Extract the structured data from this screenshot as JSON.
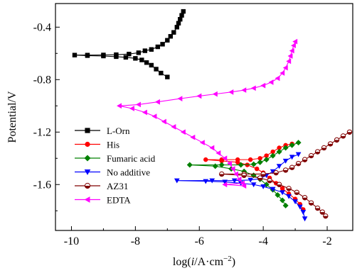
{
  "chart_data": {
    "type": "line",
    "title": "",
    "xlabel": {
      "pre": "log(",
      "italic": "i",
      "mid": "/A·cm",
      "sup": "−2",
      "post": ")"
    },
    "ylabel": "Potential/V",
    "xlim": [
      -10.5,
      -1.2
    ],
    "ylim": [
      -1.95,
      -0.22
    ],
    "xticks": [
      -10,
      -8,
      -6,
      -4,
      -2
    ],
    "xtick_labels": [
      "-10",
      "-8",
      "-6",
      "-4",
      "-2"
    ],
    "yticks": [
      -0.4,
      -0.8,
      -1.2,
      -1.6
    ],
    "ytick_labels": [
      "-0.4",
      "-0.8",
      "-1.2",
      "-1.6"
    ],
    "grid": false,
    "legend_position": "middle-left",
    "series": [
      {
        "name": "L-Orn",
        "color": "#000000",
        "marker": "square",
        "fill": "filled",
        "points": [
          [
            -6.5,
            -0.28
          ],
          [
            -6.55,
            -0.31
          ],
          [
            -6.6,
            -0.34
          ],
          [
            -6.65,
            -0.37
          ],
          [
            -6.7,
            -0.4
          ],
          [
            -6.8,
            -0.44
          ],
          [
            -6.9,
            -0.47
          ],
          [
            -7.0,
            -0.5
          ],
          [
            -7.15,
            -0.53
          ],
          [
            -7.3,
            -0.55
          ],
          [
            -7.5,
            -0.57
          ],
          [
            -7.7,
            -0.58
          ],
          [
            -7.9,
            -0.595
          ],
          [
            -8.2,
            -0.605
          ],
          [
            -8.6,
            -0.61
          ],
          [
            -9.0,
            -0.612
          ],
          [
            -9.5,
            -0.613
          ],
          [
            -9.9,
            -0.613
          ],
          [
            -9.5,
            -0.617
          ],
          [
            -9.0,
            -0.62
          ],
          [
            -8.6,
            -0.625
          ],
          [
            -8.3,
            -0.63
          ],
          [
            -8.0,
            -0.638
          ],
          [
            -7.8,
            -0.65
          ],
          [
            -7.65,
            -0.67
          ],
          [
            -7.5,
            -0.69
          ],
          [
            -7.35,
            -0.72
          ],
          [
            -7.2,
            -0.75
          ],
          [
            -7.0,
            -0.78
          ]
        ]
      },
      {
        "name": "His",
        "color": "#ff0000",
        "marker": "circle",
        "fill": "filled",
        "points": [
          [
            -3.1,
            -1.29
          ],
          [
            -3.3,
            -1.3
          ],
          [
            -3.5,
            -1.32
          ],
          [
            -3.7,
            -1.35
          ],
          [
            -3.9,
            -1.38
          ],
          [
            -4.1,
            -1.4
          ],
          [
            -4.4,
            -1.41
          ],
          [
            -4.8,
            -1.41
          ],
          [
            -5.3,
            -1.41
          ],
          [
            -5.8,
            -1.41
          ],
          [
            -5.3,
            -1.42
          ],
          [
            -4.8,
            -1.43
          ],
          [
            -4.5,
            -1.45
          ],
          [
            -4.2,
            -1.48
          ],
          [
            -4.0,
            -1.51
          ],
          [
            -3.8,
            -1.55
          ],
          [
            -3.6,
            -1.59
          ],
          [
            -3.4,
            -1.63
          ],
          [
            -3.2,
            -1.67
          ],
          [
            -3.0,
            -1.71
          ],
          [
            -2.85,
            -1.75
          ],
          [
            -2.75,
            -1.79
          ]
        ]
      },
      {
        "name": "Fumaric acid",
        "color": "#008000",
        "marker": "diamond",
        "fill": "filled",
        "points": [
          [
            -2.9,
            -1.28
          ],
          [
            -3.1,
            -1.3
          ],
          [
            -3.3,
            -1.32
          ],
          [
            -3.5,
            -1.35
          ],
          [
            -3.7,
            -1.38
          ],
          [
            -3.9,
            -1.41
          ],
          [
            -4.1,
            -1.43
          ],
          [
            -4.3,
            -1.445
          ],
          [
            -4.7,
            -1.45
          ],
          [
            -5.3,
            -1.45
          ],
          [
            -6.3,
            -1.45
          ],
          [
            -5.5,
            -1.46
          ],
          [
            -5.0,
            -1.48
          ],
          [
            -4.6,
            -1.5
          ],
          [
            -4.3,
            -1.53
          ],
          [
            -4.1,
            -1.56
          ],
          [
            -3.9,
            -1.6
          ],
          [
            -3.7,
            -1.64
          ],
          [
            -3.55,
            -1.68
          ],
          [
            -3.4,
            -1.72
          ],
          [
            -3.3,
            -1.76
          ]
        ]
      },
      {
        "name": "No additive",
        "color": "#0000ff",
        "marker": "triangle-down",
        "fill": "filled",
        "points": [
          [
            -2.9,
            -1.37
          ],
          [
            -3.1,
            -1.39
          ],
          [
            -3.3,
            -1.42
          ],
          [
            -3.5,
            -1.46
          ],
          [
            -3.7,
            -1.5
          ],
          [
            -3.9,
            -1.53
          ],
          [
            -4.1,
            -1.555
          ],
          [
            -4.4,
            -1.565
          ],
          [
            -4.9,
            -1.57
          ],
          [
            -5.6,
            -1.57
          ],
          [
            -6.7,
            -1.57
          ],
          [
            -5.8,
            -1.575
          ],
          [
            -5.2,
            -1.58
          ],
          [
            -4.7,
            -1.59
          ],
          [
            -4.3,
            -1.6
          ],
          [
            -4.0,
            -1.615
          ],
          [
            -3.7,
            -1.635
          ],
          [
            -3.4,
            -1.66
          ],
          [
            -3.2,
            -1.69
          ],
          [
            -3.0,
            -1.73
          ],
          [
            -2.85,
            -1.77
          ],
          [
            -2.75,
            -1.81
          ],
          [
            -2.7,
            -1.86
          ]
        ]
      },
      {
        "name": "AZ31",
        "color": "#800000",
        "marker": "circle-half",
        "fill": "half",
        "points": [
          [
            -1.3,
            -1.2
          ],
          [
            -1.5,
            -1.23
          ],
          [
            -1.7,
            -1.26
          ],
          [
            -1.9,
            -1.29
          ],
          [
            -2.1,
            -1.32
          ],
          [
            -2.3,
            -1.35
          ],
          [
            -2.5,
            -1.38
          ],
          [
            -2.7,
            -1.41
          ],
          [
            -2.9,
            -1.44
          ],
          [
            -3.1,
            -1.47
          ],
          [
            -3.3,
            -1.49
          ],
          [
            -3.6,
            -1.51
          ],
          [
            -4.0,
            -1.52
          ],
          [
            -4.6,
            -1.52
          ],
          [
            -5.3,
            -1.52
          ],
          [
            -4.6,
            -1.53
          ],
          [
            -4.1,
            -1.55
          ],
          [
            -3.8,
            -1.57
          ],
          [
            -3.5,
            -1.6
          ],
          [
            -3.2,
            -1.63
          ],
          [
            -2.95,
            -1.66
          ],
          [
            -2.7,
            -1.7
          ],
          [
            -2.5,
            -1.74
          ],
          [
            -2.3,
            -1.78
          ],
          [
            -2.15,
            -1.81
          ],
          [
            -2.05,
            -1.84
          ]
        ]
      },
      {
        "name": "EDTA",
        "color": "#ff00ff",
        "marker": "triangle-left",
        "fill": "filled",
        "points": [
          [
            -3.0,
            -0.51
          ],
          [
            -3.05,
            -0.54
          ],
          [
            -3.1,
            -0.58
          ],
          [
            -3.15,
            -0.62
          ],
          [
            -3.2,
            -0.66
          ],
          [
            -3.3,
            -0.71
          ],
          [
            -3.4,
            -0.75
          ],
          [
            -3.55,
            -0.79
          ],
          [
            -3.75,
            -0.82
          ],
          [
            -4.0,
            -0.845
          ],
          [
            -4.3,
            -0.865
          ],
          [
            -4.6,
            -0.88
          ],
          [
            -5.0,
            -0.895
          ],
          [
            -5.5,
            -0.91
          ],
          [
            -6.0,
            -0.925
          ],
          [
            -6.6,
            -0.945
          ],
          [
            -7.3,
            -0.97
          ],
          [
            -7.9,
            -0.99
          ],
          [
            -8.5,
            -1.0
          ],
          [
            -8.1,
            -1.02
          ],
          [
            -7.7,
            -1.05
          ],
          [
            -7.4,
            -1.08
          ],
          [
            -7.1,
            -1.12
          ],
          [
            -6.8,
            -1.16
          ],
          [
            -6.5,
            -1.2
          ],
          [
            -6.2,
            -1.24
          ],
          [
            -5.9,
            -1.28
          ],
          [
            -5.6,
            -1.32
          ],
          [
            -5.4,
            -1.36
          ],
          [
            -5.2,
            -1.4
          ],
          [
            -5.05,
            -1.44
          ],
          [
            -4.95,
            -1.48
          ],
          [
            -4.85,
            -1.52
          ],
          [
            -4.75,
            -1.56
          ],
          [
            -4.65,
            -1.59
          ],
          [
            -5.2,
            -1.6
          ],
          [
            -4.6,
            -1.61
          ]
        ]
      }
    ]
  }
}
